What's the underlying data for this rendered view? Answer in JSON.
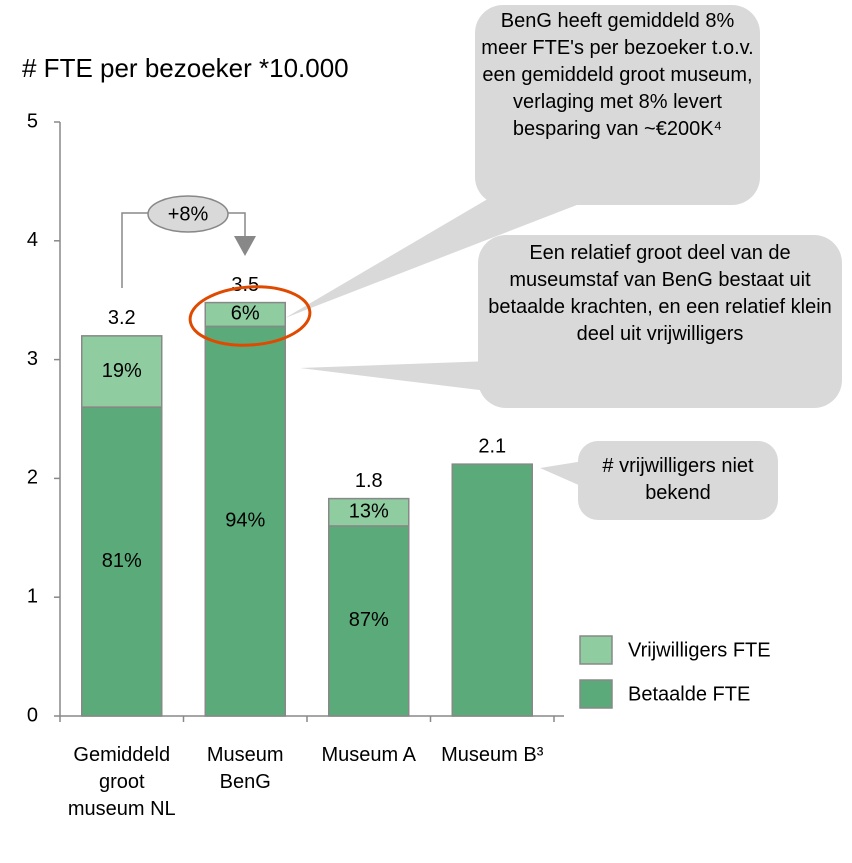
{
  "chart_data": {
    "type": "bar",
    "stacked": true,
    "title": "#  FTE per bezoeker *10.000",
    "categories": [
      "Gemiddeld groot museum NL",
      "Museum BenG",
      "Museum A",
      "Museum B³"
    ],
    "series": [
      {
        "name": "Betaalde FTE",
        "color": "#5aaa7a",
        "values": [
          2.6,
          3.28,
          1.6,
          2.12
        ],
        "share_labels": [
          "81%",
          "94%",
          "87%",
          null
        ]
      },
      {
        "name": "Vrijwilligers FTE",
        "color": "#8fcca0",
        "values": [
          0.6,
          0.2,
          0.23,
          null
        ],
        "share_labels": [
          "19%",
          "6%",
          "13%",
          null
        ]
      }
    ],
    "totals": [
      3.2,
      3.5,
      1.8,
      2.1
    ],
    "ylim": [
      0,
      5
    ],
    "yticks": [
      0,
      1,
      2,
      3,
      4,
      5
    ],
    "grid": false,
    "legend": "lower right",
    "annotations": [
      "+8%",
      "BenG heeft gemiddeld 8% meer FTE's per bezoeker t.o.v. een gemiddeld groot museum, verlaging met 8% levert besparing van ~€200K⁴",
      "Een relatief groot deel van de museumstaf van BenG bestaat uit betaalde krachten, en een relatief klein deel uit vrijwilligers",
      "# vrijwilligers niet bekend"
    ]
  }
}
